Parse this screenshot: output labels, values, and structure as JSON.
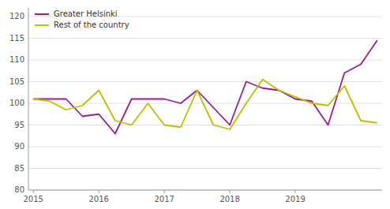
{
  "chart_data": {
    "type": "line",
    "categories": [
      "2015",
      null,
      null,
      null,
      "2016",
      null,
      null,
      null,
      "2017",
      null,
      null,
      null,
      "2018",
      null,
      null,
      null,
      "2019",
      null,
      null,
      null,
      null,
      null
    ],
    "series": [
      {
        "name": "Greater Helsinki",
        "color": "#9B1D8A",
        "values": [
          101.0,
          101.0,
          101.0,
          97.0,
          97.5,
          93.0,
          101.0,
          101.0,
          101.0,
          100.0,
          103.0,
          99.0,
          95.0,
          105.0,
          103.5,
          103.0,
          101.0,
          100.5,
          95.0,
          107.0,
          109.0,
          114.5
        ]
      },
      {
        "name": "Rest of the country",
        "color": "#BFBF00",
        "values": [
          101.0,
          100.5,
          98.5,
          99.5,
          103.0,
          96.0,
          95.0,
          100.0,
          95.0,
          94.5,
          103.0,
          95.0,
          94.0,
          100.0,
          105.5,
          103.0,
          101.5,
          100.0,
          99.5,
          104.0,
          96.0,
          95.5
        ]
      }
    ],
    "ylim": [
      80,
      122
    ],
    "yticks": [
      80,
      85,
      90,
      95,
      100,
      105,
      110,
      115,
      120
    ],
    "grid": true,
    "legend": "upper-left"
  }
}
